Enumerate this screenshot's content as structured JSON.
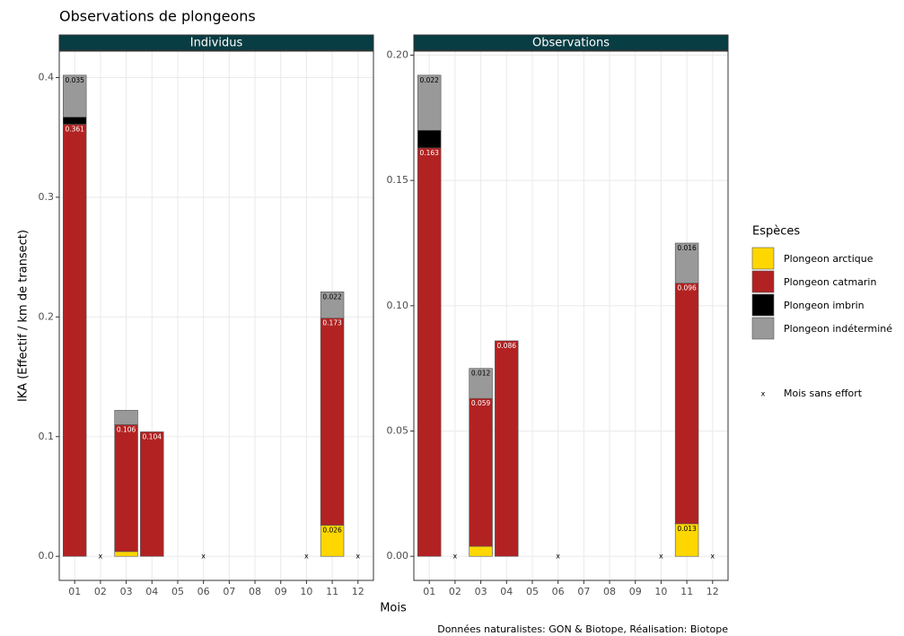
{
  "title": "Observations de plongeons",
  "ylabel": "IKA (Effectif / km de transect)",
  "xlabel": "Mois",
  "caption": "Données naturalistes: GON & Biotope, Réalisation: Biotope",
  "legend_title": "Espèces",
  "no_effort": {
    "label": "Mois sans effort",
    "marker": "x"
  },
  "chart_data": [
    {
      "type": "bar",
      "stacked": true,
      "title": "Individus",
      "categories": [
        "01",
        "02",
        "03",
        "04",
        "05",
        "06",
        "07",
        "08",
        "09",
        "10",
        "11",
        "12"
      ],
      "ylim": [
        -0.0201,
        0.4221
      ],
      "yticks": [
        {
          "value": 0,
          "label": "0.0"
        },
        0.1,
        0.2,
        0.3,
        0.4
      ],
      "grid": true,
      "series": [
        {
          "name": "Plongeon arctique",
          "color": "#FFD700",
          "values": [
            0,
            null,
            0.004,
            0,
            0,
            null,
            0,
            0,
            0,
            null,
            0.026,
            null
          ],
          "value_labels": [
            null,
            null,
            null,
            null,
            null,
            null,
            null,
            null,
            null,
            null,
            "0.026",
            null
          ]
        },
        {
          "name": "Plongeon catmarin",
          "color": "#B22222",
          "values": [
            0.361,
            null,
            0.106,
            0.104,
            0,
            null,
            0,
            0,
            0,
            null,
            0.173,
            null
          ],
          "value_labels": [
            "0.361",
            null,
            "0.106",
            "0.104",
            null,
            null,
            null,
            null,
            null,
            null,
            "0.173",
            null
          ]
        },
        {
          "name": "Plongeon imbrin",
          "color": "#000000",
          "values": [
            0.006,
            null,
            0,
            0,
            0,
            null,
            0,
            0,
            0,
            null,
            0,
            null
          ],
          "value_labels": [
            null,
            null,
            null,
            null,
            null,
            null,
            null,
            null,
            null,
            null,
            null,
            null
          ]
        },
        {
          "name": "Plongeon indéterminé",
          "color": "#999999",
          "values": [
            0.035,
            null,
            0.012,
            0,
            0,
            null,
            0,
            0,
            0,
            null,
            0.022,
            null
          ],
          "value_labels": [
            "0.035",
            null,
            null,
            null,
            null,
            null,
            null,
            null,
            null,
            null,
            "0.022",
            null
          ]
        }
      ]
    },
    {
      "type": "bar",
      "stacked": true,
      "title": "Observations",
      "categories": [
        "01",
        "02",
        "03",
        "04",
        "05",
        "06",
        "07",
        "08",
        "09",
        "10",
        "11",
        "12"
      ],
      "ylim": [
        -0.0096,
        0.2016
      ],
      "yticks": [
        {
          "value": 0,
          "label": "0.00"
        },
        0.05,
        {
          "value": 0.1,
          "label": "0.10"
        },
        0.15,
        {
          "value": 0.2,
          "label": "0.20"
        }
      ],
      "grid": true,
      "series": [
        {
          "name": "Plongeon arctique",
          "color": "#FFD700",
          "values": [
            0,
            null,
            0.004,
            0,
            0,
            null,
            0,
            0,
            0,
            null,
            0.013,
            null
          ],
          "value_labels": [
            null,
            null,
            null,
            null,
            null,
            null,
            null,
            null,
            null,
            null,
            "0.013",
            null
          ]
        },
        {
          "name": "Plongeon catmarin",
          "color": "#B22222",
          "values": [
            0.163,
            null,
            0.059,
            0.086,
            0,
            null,
            0,
            0,
            0,
            null,
            0.096,
            null
          ],
          "value_labels": [
            "0.163",
            null,
            "0.059",
            "0.086",
            null,
            null,
            null,
            null,
            null,
            null,
            "0.096",
            null
          ]
        },
        {
          "name": "Plongeon imbrin",
          "color": "#000000",
          "values": [
            0.007,
            null,
            0,
            0,
            0,
            null,
            0,
            0,
            0,
            null,
            0,
            null
          ],
          "value_labels": [
            null,
            null,
            null,
            null,
            null,
            null,
            null,
            null,
            null,
            null,
            null,
            null
          ]
        },
        {
          "name": "Plongeon indéterminé",
          "color": "#999999",
          "values": [
            0.022,
            null,
            0.012,
            0,
            0,
            null,
            0,
            0,
            0,
            null,
            0.016,
            null
          ],
          "value_labels": [
            "0.022",
            null,
            "0.012",
            null,
            null,
            null,
            null,
            null,
            null,
            null,
            "0.016",
            null
          ]
        }
      ]
    }
  ]
}
